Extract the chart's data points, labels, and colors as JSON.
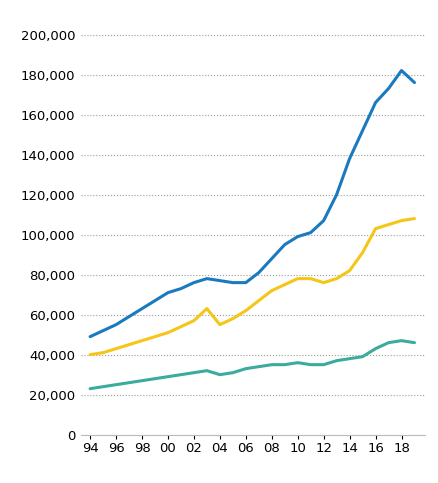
{
  "years": [
    1994,
    1995,
    1996,
    1997,
    1998,
    1999,
    2000,
    2001,
    2002,
    2003,
    2004,
    2005,
    2006,
    2007,
    2008,
    2009,
    2010,
    2011,
    2012,
    2013,
    2014,
    2015,
    2016,
    2017,
    2018,
    2019
  ],
  "applicants": [
    49000,
    52000,
    55000,
    59000,
    63000,
    67000,
    71000,
    73000,
    76000,
    78000,
    77000,
    76000,
    76000,
    81000,
    88000,
    95000,
    99000,
    101000,
    107000,
    120000,
    138000,
    152000,
    166000,
    173000,
    182000,
    176000
  ],
  "admits": [
    40000,
    41000,
    43000,
    45000,
    47000,
    49000,
    51000,
    54000,
    57000,
    63000,
    55000,
    58000,
    62000,
    67000,
    72000,
    75000,
    78000,
    78000,
    76000,
    78000,
    82000,
    91000,
    103000,
    105000,
    107000,
    108000
  ],
  "enrollees": [
    23000,
    24000,
    25000,
    26000,
    27000,
    28000,
    29000,
    30000,
    31000,
    32000,
    30000,
    31000,
    33000,
    34000,
    35000,
    35000,
    36000,
    35000,
    35000,
    37000,
    38000,
    39000,
    43000,
    46000,
    47000,
    46000
  ],
  "applicants_color": "#1a7abf",
  "admits_color": "#f5c518",
  "enrollees_color": "#3bab9e",
  "line_width": 2.2,
  "ylim": [
    0,
    210000
  ],
  "yticks": [
    0,
    20000,
    40000,
    60000,
    80000,
    100000,
    120000,
    140000,
    160000,
    180000,
    200000
  ],
  "xtick_labels": [
    "94",
    "96",
    "98",
    "00",
    "02",
    "04",
    "06",
    "08",
    "10",
    "12",
    "14",
    "16",
    "18"
  ],
  "xtick_values": [
    1994,
    1996,
    1998,
    2000,
    2002,
    2004,
    2006,
    2008,
    2010,
    2012,
    2014,
    2016,
    2018
  ],
  "background_color": "#ffffff",
  "grid_color": "#999999",
  "xlim_left": 1993.3,
  "xlim_right": 2019.8
}
